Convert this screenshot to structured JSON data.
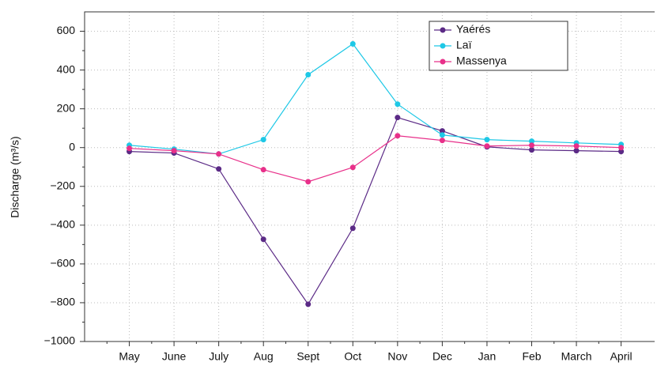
{
  "chart_data": {
    "type": "line",
    "y_label": "Discharge (m³/s)",
    "categories": [
      "May",
      "June",
      "July",
      "Aug",
      "Sept",
      "Oct",
      "Nov",
      "Dec",
      "Jan",
      "Feb",
      "March",
      "April"
    ],
    "series": [
      {
        "name": "Yaérés",
        "color": "#5b2a86",
        "values": [
          -20,
          -28,
          -110,
          -473,
          -808,
          -416,
          155,
          86,
          4,
          -12,
          -16,
          -20
        ]
      },
      {
        "name": "Laï",
        "color": "#1ec8e6",
        "values": [
          12,
          -8,
          -33,
          41,
          376,
          535,
          224,
          65,
          41,
          33,
          24,
          16
        ]
      },
      {
        "name": "Massenya",
        "color": "#e8308a",
        "values": [
          -4,
          -16,
          -33,
          -114,
          -176,
          -102,
          61,
          37,
          8,
          12,
          8,
          0
        ]
      }
    ],
    "ylim": [
      -1000,
      700
    ],
    "yticks": [
      {
        "value": -1000,
        "label": "−1000"
      },
      {
        "value": -800,
        "label": "−800"
      },
      {
        "value": -600,
        "label": "−600"
      },
      {
        "value": -400,
        "label": "−400"
      },
      {
        "value": -200,
        "label": "−200"
      },
      0,
      200,
      400,
      600
    ],
    "grid": true,
    "legend": "upper right"
  }
}
